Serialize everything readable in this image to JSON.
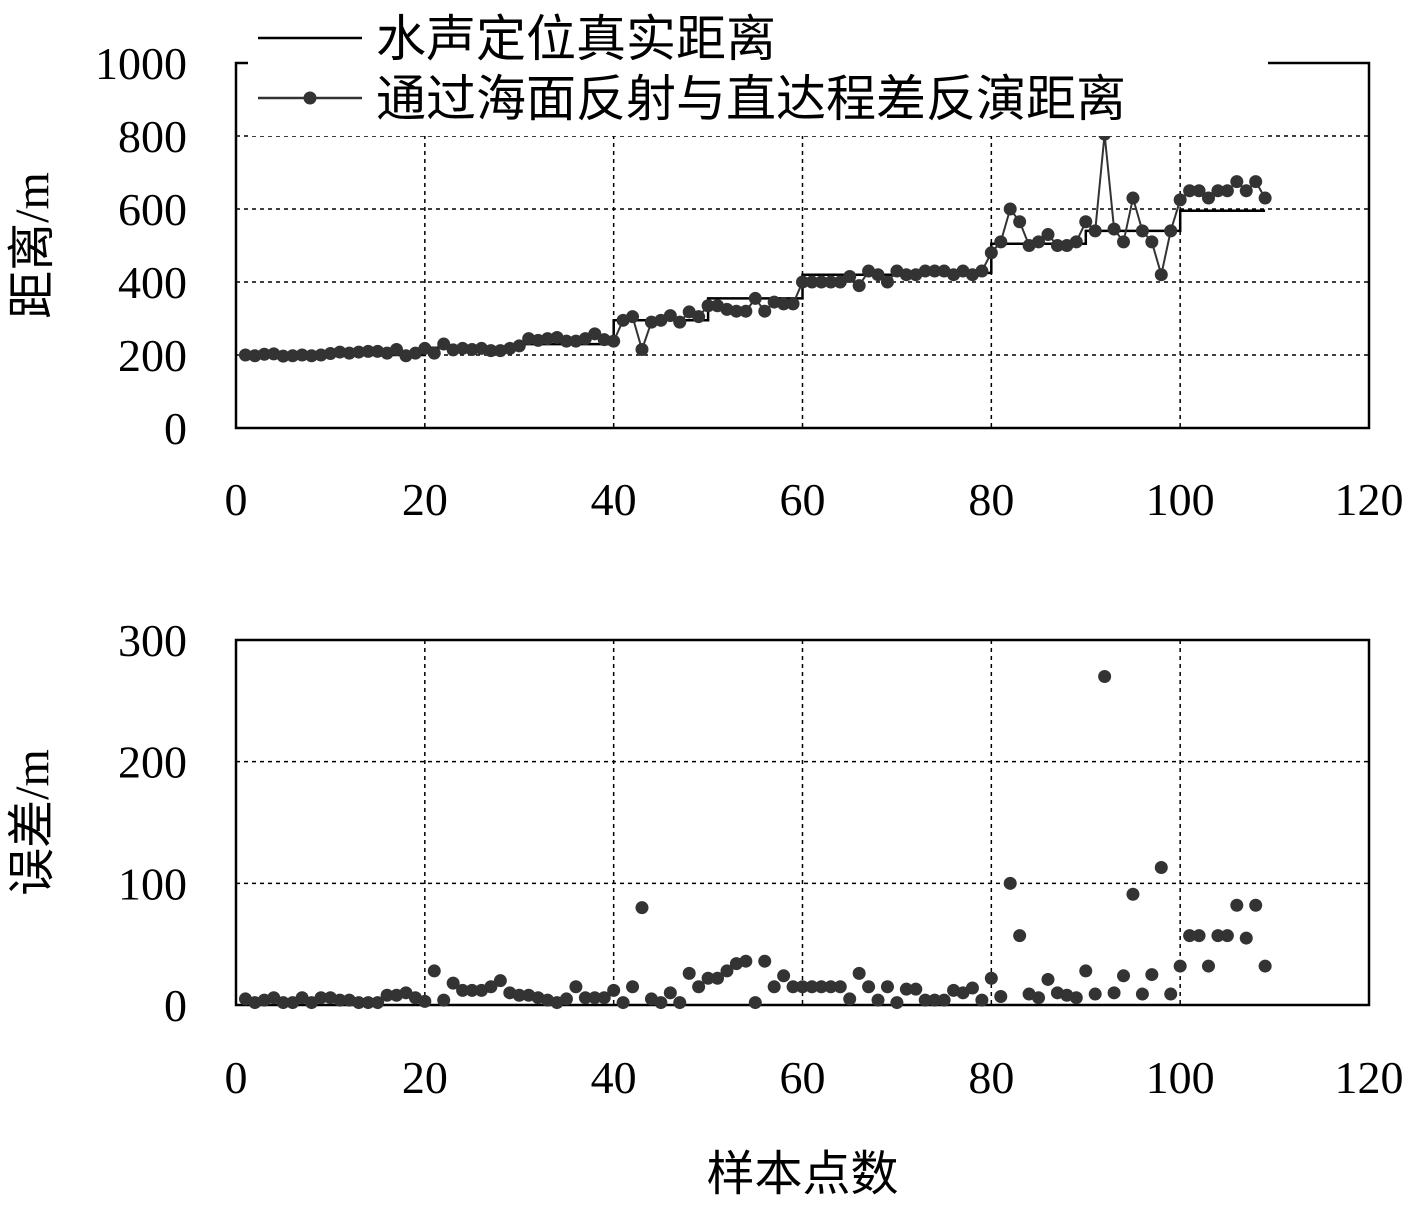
{
  "chart_data": [
    {
      "type": "line",
      "xlabel": "",
      "ylabel": "距离/m",
      "xlim": [
        0,
        120
      ],
      "ylim": [
        0,
        1000
      ],
      "xticks": [
        "0",
        "20",
        "40",
        "60",
        "80",
        "100",
        "120"
      ],
      "yticks": [
        "0",
        "200",
        "400",
        "600",
        "800",
        "1000"
      ],
      "grid": "dashed at x=20,40,60,80,100 and y=200,400,600,800",
      "legend_position": "top-left",
      "series": [
        {
          "name": "水声定位真实距离",
          "style": "step line, no markers",
          "color": "#000000",
          "x": [
            1,
            20,
            20,
            30,
            30,
            40,
            40,
            50,
            50,
            60,
            60,
            70,
            70,
            80,
            80,
            90,
            90,
            100,
            100,
            109
          ],
          "y": [
            200,
            200,
            220,
            220,
            230,
            230,
            295,
            295,
            355,
            355,
            420,
            420,
            425,
            425,
            505,
            505,
            540,
            540,
            595,
            595
          ]
        },
        {
          "name": "通过海面反射与直达程差反演距离",
          "style": "line with circle markers",
          "color": "#333333",
          "x": [
            1,
            2,
            3,
            4,
            5,
            6,
            7,
            8,
            9,
            10,
            11,
            12,
            13,
            14,
            15,
            16,
            17,
            18,
            19,
            20,
            21,
            22,
            23,
            24,
            25,
            26,
            27,
            28,
            29,
            30,
            31,
            32,
            33,
            34,
            35,
            36,
            37,
            38,
            39,
            40,
            41,
            42,
            43,
            44,
            45,
            46,
            47,
            48,
            49,
            50,
            51,
            52,
            53,
            54,
            55,
            56,
            57,
            58,
            59,
            60,
            61,
            62,
            63,
            64,
            65,
            66,
            67,
            68,
            69,
            70,
            71,
            72,
            73,
            74,
            75,
            76,
            77,
            78,
            79,
            80,
            81,
            82,
            83,
            84,
            85,
            86,
            87,
            88,
            89,
            90,
            91,
            92,
            93,
            94,
            95,
            96,
            97,
            98,
            99,
            100,
            101,
            102,
            103,
            104,
            105,
            106,
            107,
            108,
            109
          ],
          "y": [
            200,
            198,
            202,
            203,
            197,
            198,
            200,
            198,
            200,
            204,
            208,
            205,
            208,
            210,
            210,
            205,
            215,
            198,
            205,
            218,
            205,
            230,
            214,
            218,
            215,
            218,
            212,
            212,
            218,
            225,
            245,
            240,
            245,
            248,
            238,
            238,
            245,
            258,
            242,
            238,
            295,
            305,
            215,
            290,
            295,
            308,
            290,
            318,
            305,
            335,
            335,
            325,
            320,
            320,
            355,
            320,
            345,
            340,
            340,
            400,
            400,
            400,
            400,
            400,
            415,
            390,
            430,
            420,
            400,
            430,
            420,
            420,
            430,
            430,
            430,
            420,
            430,
            420,
            430,
            480,
            510,
            600,
            565,
            500,
            510,
            530,
            500,
            500,
            510,
            565,
            540,
            805,
            545,
            510,
            630,
            540,
            510,
            420,
            540,
            625,
            650,
            650,
            630,
            650,
            650,
            675,
            650,
            675,
            630
          ]
        }
      ]
    },
    {
      "type": "scatter",
      "xlabel": "样本点数",
      "ylabel": "误差/m",
      "xlim": [
        0,
        120
      ],
      "ylim": [
        0,
        300
      ],
      "xticks": [
        "0",
        "20",
        "40",
        "60",
        "80",
        "100",
        "120"
      ],
      "yticks": [
        "0",
        "100",
        "200",
        "300"
      ],
      "grid": "dashed at x=20,40,60,80,100 and y=100,200",
      "series": [
        {
          "name": "",
          "color": "#333333",
          "x": [
            1,
            2,
            3,
            4,
            5,
            6,
            7,
            8,
            9,
            10,
            11,
            12,
            13,
            14,
            15,
            16,
            17,
            18,
            19,
            20,
            21,
            22,
            23,
            24,
            25,
            26,
            27,
            28,
            29,
            30,
            31,
            32,
            33,
            34,
            35,
            36,
            37,
            38,
            39,
            40,
            41,
            42,
            43,
            44,
            45,
            46,
            47,
            48,
            49,
            50,
            51,
            52,
            53,
            54,
            55,
            56,
            57,
            58,
            59,
            60,
            61,
            62,
            63,
            64,
            65,
            66,
            67,
            68,
            69,
            70,
            71,
            72,
            73,
            74,
            75,
            76,
            77,
            78,
            79,
            80,
            81,
            82,
            83,
            84,
            85,
            86,
            87,
            88,
            89,
            90,
            91,
            92,
            93,
            94,
            95,
            96,
            97,
            98,
            99,
            100,
            101,
            102,
            103,
            104,
            105,
            106,
            107,
            108,
            109
          ],
          "y": [
            5,
            2,
            4,
            6,
            2,
            2,
            6,
            2,
            6,
            6,
            4,
            4,
            2,
            2,
            2,
            8,
            8,
            10,
            6,
            3,
            28,
            4,
            18,
            12,
            12,
            12,
            15,
            20,
            10,
            8,
            8,
            6,
            4,
            2,
            5,
            15,
            6,
            6,
            6,
            12,
            2,
            15,
            80,
            5,
            2,
            10,
            2,
            26,
            15,
            22,
            22,
            28,
            34,
            36,
            2,
            36,
            15,
            24,
            15,
            15,
            15,
            15,
            15,
            15,
            5,
            26,
            15,
            4,
            15,
            2,
            13,
            13,
            4,
            4,
            4,
            12,
            10,
            14,
            4,
            22,
            7,
            100,
            57,
            9,
            6,
            21,
            10,
            8,
            6,
            28,
            9,
            270,
            10,
            24,
            91,
            9,
            25,
            113,
            9,
            32,
            57,
            57,
            32,
            57,
            57,
            82,
            55,
            82,
            32
          ]
        }
      ]
    }
  ]
}
